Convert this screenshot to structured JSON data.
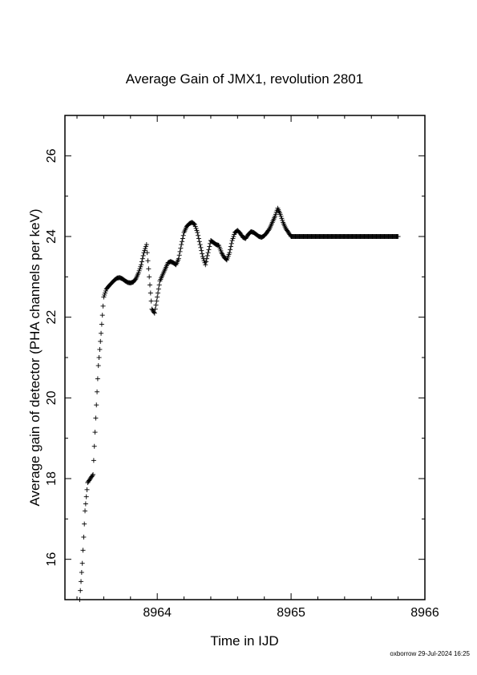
{
  "chart_data": {
    "type": "scatter",
    "title": "Average Gain of JMX1, revolution 2801",
    "xlabel": "Time in IJD",
    "ylabel": "Average gain of detector (PHA channels per keV)",
    "xlim": [
      8963.31,
      8966.0
    ],
    "ylim": [
      15.0,
      27.0
    ],
    "xticks": [
      8964,
      8965,
      8966
    ],
    "yticks": [
      16,
      18,
      20,
      22,
      24,
      26
    ],
    "grid": false,
    "legend": "none",
    "marker": "plus",
    "marker_color": "#000000",
    "x": [
      8963.42,
      8963.44,
      8963.46,
      8963.48,
      8963.5,
      8963.52,
      8963.54,
      8963.56,
      8963.58,
      8963.6,
      8963.62,
      8963.64,
      8963.66,
      8963.68,
      8963.7,
      8963.72,
      8963.74,
      8963.76,
      8963.78,
      8963.8,
      8963.82,
      8963.84,
      8963.86,
      8963.88,
      8963.9,
      8963.92,
      8963.94,
      8963.96,
      8963.98,
      8964.0,
      8964.02,
      8964.04,
      8964.06,
      8964.08,
      8964.1,
      8964.12,
      8964.14,
      8964.16,
      8964.18,
      8964.2,
      8964.22,
      8964.24,
      8964.26,
      8964.28,
      8964.3,
      8964.32,
      8964.34,
      8964.36,
      8964.38,
      8964.4,
      8964.42,
      8964.44,
      8964.46,
      8964.48,
      8964.5,
      8964.52,
      8964.54,
      8964.56,
      8964.58,
      8964.6,
      8964.62,
      8964.64,
      8964.66,
      8964.68,
      8964.7,
      8964.72,
      8964.74,
      8964.76,
      8964.78,
      8964.8,
      8964.82,
      8964.84,
      8964.86,
      8964.88,
      8964.9,
      8964.92,
      8964.94,
      8964.96,
      8964.98,
      8965.0,
      8965.02,
      8965.04,
      8965.06,
      8965.08,
      8965.1,
      8965.12,
      8965.14,
      8965.16,
      8965.18,
      8965.2,
      8965.22,
      8965.24,
      8965.26,
      8965.28,
      8965.3,
      8965.32,
      8965.34,
      8965.36,
      8965.38,
      8965.4,
      8965.42,
      8965.44,
      8965.46,
      8965.48,
      8965.5,
      8965.52,
      8965.54,
      8965.56,
      8965.58,
      8965.6,
      8965.62,
      8965.64,
      8965.66,
      8965.68,
      8965.7,
      8965.72,
      8965.74,
      8965.76,
      8965.78,
      8965.8
    ],
    "y": [
      15.0,
      15.9,
      17.2,
      17.9,
      18.0,
      18.1,
      19.5,
      20.8,
      21.6,
      22.5,
      22.7,
      22.78,
      22.85,
      22.92,
      22.97,
      22.98,
      22.95,
      22.9,
      22.86,
      22.85,
      22.87,
      22.95,
      23.1,
      23.3,
      23.6,
      23.8,
      23.0,
      22.2,
      22.1,
      22.5,
      22.9,
      23.05,
      23.2,
      23.35,
      23.38,
      23.35,
      23.3,
      23.45,
      23.8,
      24.1,
      24.25,
      24.32,
      24.35,
      24.3,
      24.1,
      23.8,
      23.5,
      23.3,
      23.6,
      23.9,
      23.85,
      23.8,
      23.78,
      23.6,
      23.48,
      23.42,
      23.6,
      23.9,
      24.1,
      24.15,
      24.08,
      23.98,
      23.95,
      24.05,
      24.12,
      24.1,
      24.05,
      24.0,
      23.98,
      24.02,
      24.1,
      24.2,
      24.35,
      24.5,
      24.7,
      24.55,
      24.35,
      24.2,
      24.1,
      24.0,
      24.0,
      24.0,
      24.0,
      24.0,
      24.0,
      24.0,
      24.0,
      24.0,
      24.0,
      24.0,
      24.0,
      24.0,
      24.0,
      24.0,
      24.0,
      24.0,
      24.0,
      24.0,
      24.0,
      24.0,
      24.0,
      24.0,
      24.0,
      24.0,
      24.0,
      24.0,
      24.0,
      24.0,
      24.0,
      24.0,
      24.0,
      24.0,
      24.0,
      24.0,
      24.0,
      24.0,
      24.0,
      24.0,
      24.0,
      24.0
    ]
  },
  "footer": "oxborrow 29-Jul-2024 16:25"
}
